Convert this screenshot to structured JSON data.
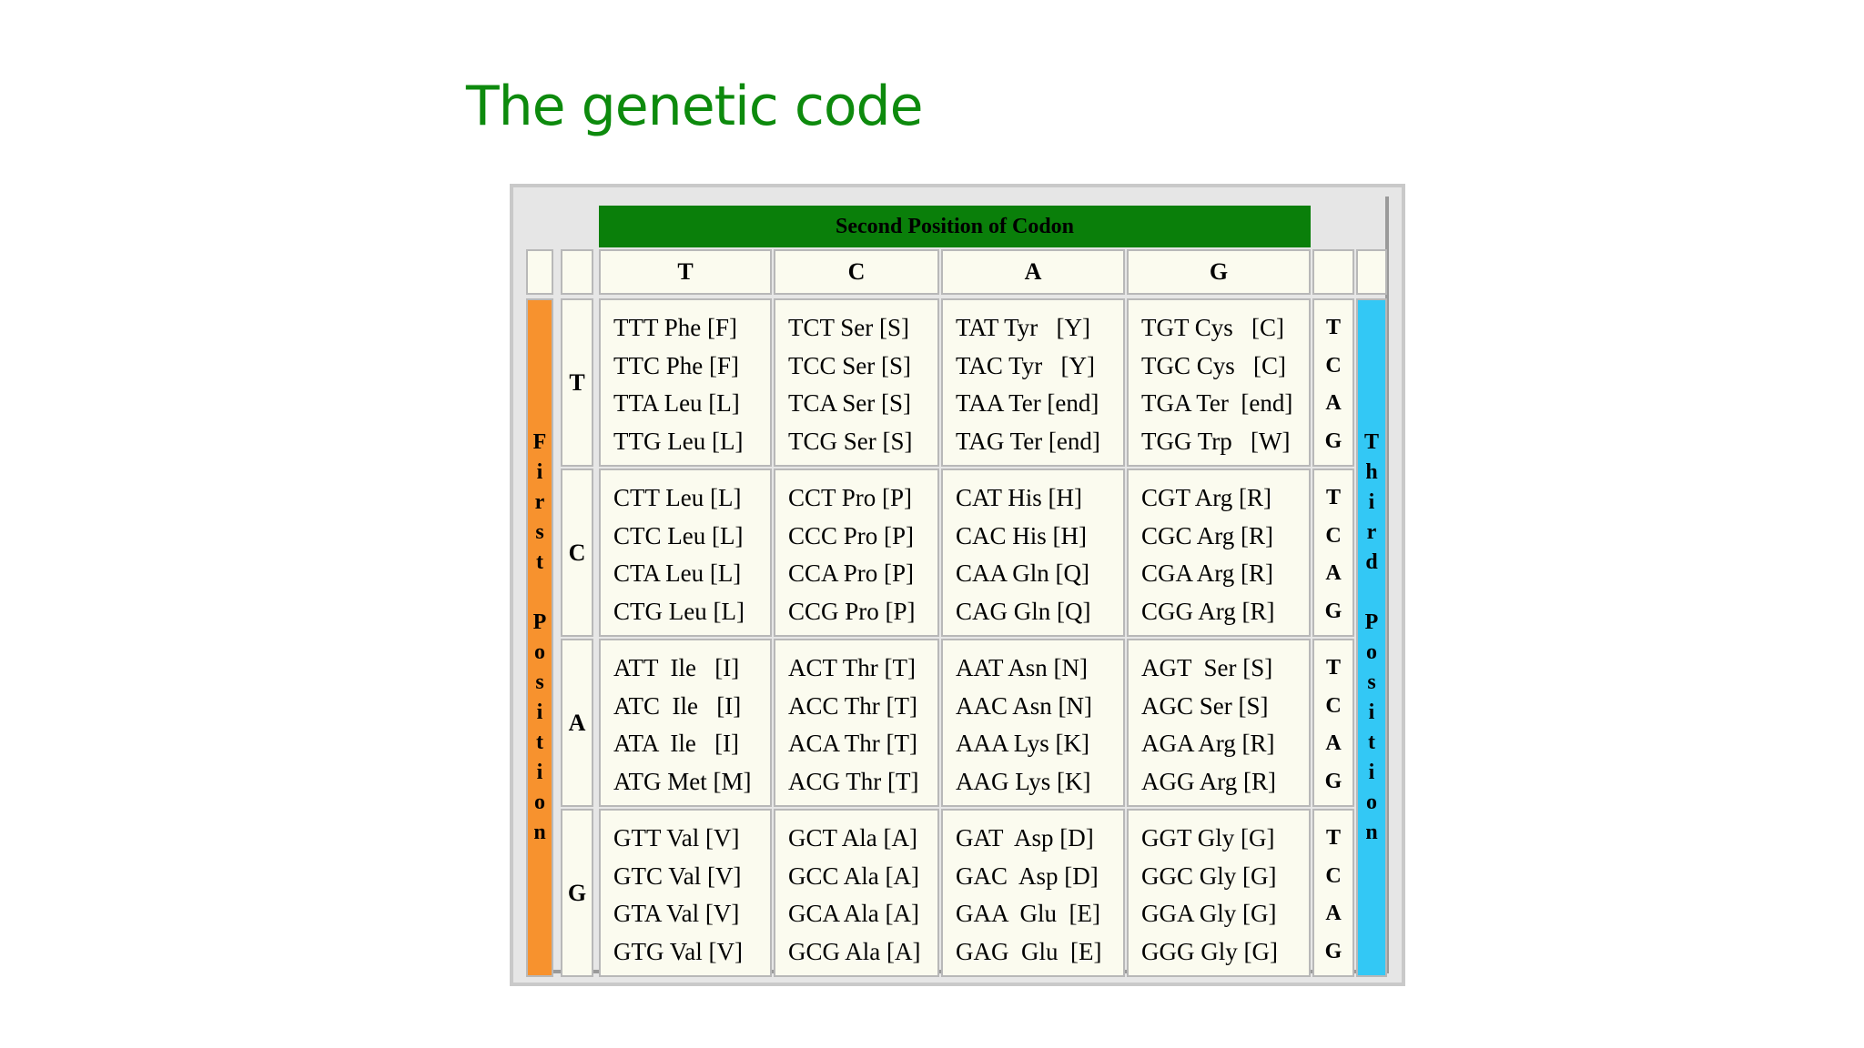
{
  "title": "The genetic code",
  "table": {
    "header": "Second Position of Codon",
    "first_position_label": "First Position",
    "third_position_label": "Third Position",
    "second_bases": [
      "T",
      "C",
      "A",
      "G"
    ],
    "first_bases": [
      "T",
      "C",
      "A",
      "G"
    ],
    "third_bases": [
      "T",
      "C",
      "A",
      "G"
    ],
    "rows": [
      [
        [
          "TTT Phe [F]",
          "TTC Phe [F]",
          "TTA Leu [L]",
          "TTG Leu [L]"
        ],
        [
          "TCT Ser [S]",
          "TCC Ser [S]",
          "TCA Ser [S]",
          "TCG Ser [S]"
        ],
        [
          "TAT Tyr   [Y]",
          "TAC Tyr   [Y]",
          "TAA Ter [end]",
          "TAG Ter [end]"
        ],
        [
          "TGT Cys   [C]",
          "TGC Cys   [C]",
          "TGA Ter  [end]",
          "TGG Trp   [W]"
        ]
      ],
      [
        [
          "CTT Leu [L]",
          "CTC Leu [L]",
          "CTA Leu [L]",
          "CTG Leu [L]"
        ],
        [
          "CCT Pro [P]",
          "CCC Pro [P]",
          "CCA Pro [P]",
          "CCG Pro [P]"
        ],
        [
          "CAT His [H]",
          "CAC His [H]",
          "CAA Gln [Q]",
          "CAG Gln [Q]"
        ],
        [
          "CGT Arg [R]",
          "CGC Arg [R]",
          "CGA Arg [R]",
          "CGG Arg [R]"
        ]
      ],
      [
        [
          "ATT  Ile   [I]",
          "ATC  Ile   [I]",
          "ATA  Ile   [I]",
          "ATG Met [M]"
        ],
        [
          "ACT Thr [T]",
          "ACC Thr [T]",
          "ACA Thr [T]",
          "ACG Thr [T]"
        ],
        [
          "AAT Asn [N]",
          "AAC Asn [N]",
          "AAA Lys [K]",
          "AAG Lys [K]"
        ],
        [
          "AGT  Ser [S]",
          "AGC Ser [S]",
          "AGA Arg [R]",
          "AGG Arg [R]"
        ]
      ],
      [
        [
          "GTT Val [V]",
          "GTC Val [V]",
          "GTA Val [V]",
          "GTG Val [V]"
        ],
        [
          "GCT Ala [A]",
          "GCC Ala [A]",
          "GCA Ala [A]",
          "GCG Ala [A]"
        ],
        [
          "GAT  Asp [D]",
          "GAC  Asp [D]",
          "GAA  Glu  [E]",
          "GAG  Glu  [E]"
        ],
        [
          "GGT Gly [G]",
          "GGC Gly [G]",
          "GGA Gly [G]",
          "GGG Gly [G]"
        ]
      ]
    ]
  },
  "colors": {
    "title": "#0d8a0d",
    "header_bar": "#0a7f0a",
    "first_position_bar": "#f7922e",
    "third_position_bar": "#33c8f5",
    "cell_bg": "#fbfbef"
  }
}
